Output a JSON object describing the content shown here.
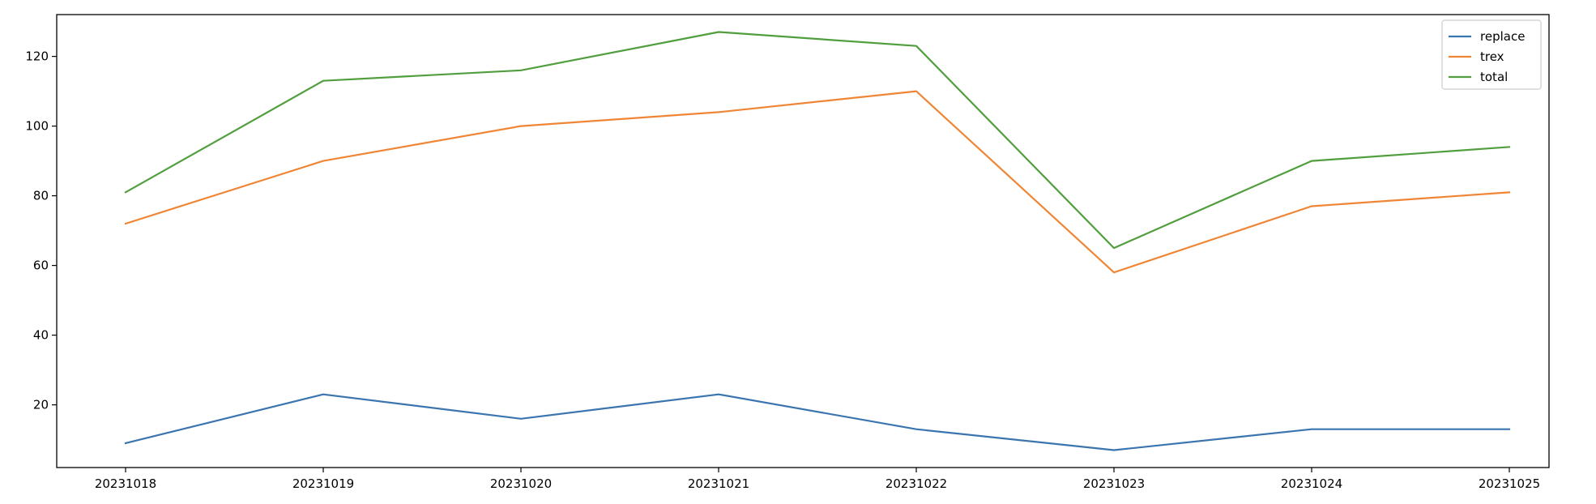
{
  "chart_data": {
    "type": "line",
    "title": "",
    "xlabel": "",
    "ylabel": "",
    "x": [
      "20231018",
      "20231019",
      "20231020",
      "20231021",
      "20231022",
      "20231023",
      "20231024",
      "20231025"
    ],
    "ylim": [
      2.0,
      132.0
    ],
    "yticks": [
      20,
      40,
      60,
      80,
      100,
      120
    ],
    "grid": false,
    "legend_position": "top-right",
    "series": [
      {
        "name": "replace",
        "color": "#3b75af",
        "values": [
          9,
          23,
          16,
          23,
          13,
          7,
          13,
          13
        ]
      },
      {
        "name": "trex",
        "color": "#ef8636",
        "values": [
          72,
          90,
          100,
          104,
          110,
          58,
          77,
          81
        ]
      },
      {
        "name": "total",
        "color": "#519e3e",
        "values": [
          81,
          113,
          116,
          127,
          123,
          65,
          90,
          94
        ]
      }
    ]
  }
}
